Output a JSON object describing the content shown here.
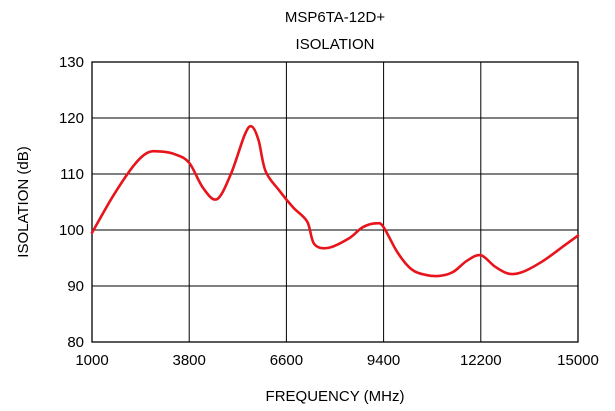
{
  "chart_data": {
    "type": "line",
    "title": "MSP6TA-12D+",
    "subtitle": "ISOLATION",
    "xlabel": "FREQUENCY (MHz)",
    "ylabel": "ISOLATION (dB)",
    "xlim": [
      1000,
      15000
    ],
    "ylim": [
      80,
      130
    ],
    "x_ticks": [
      1000,
      3800,
      6600,
      9400,
      12200,
      15000
    ],
    "y_ticks": [
      80,
      90,
      100,
      110,
      120,
      130
    ],
    "x_tick_labels": [
      "1000",
      "3800",
      "6600",
      "9400",
      "12200",
      "15000"
    ],
    "y_tick_labels": [
      "80",
      "90",
      "100",
      "110",
      "120",
      "130"
    ],
    "grid": true,
    "legend": "none",
    "series_color": "#e8141c",
    "series": [
      {
        "x": [
          1000,
          1600,
          2200,
          2600,
          3000,
          3400,
          3800,
          4200,
          4600,
          5000,
          5400,
          5600,
          5800,
          6000,
          6400,
          6800,
          7200,
          7400,
          7800,
          8400,
          8800,
          9200,
          9400,
          9800,
          10200,
          10600,
          11000,
          11400,
          11800,
          12200,
          12600,
          13000,
          13400,
          14000,
          14600,
          15000
        ],
        "y": [
          99.5,
          106,
          111.5,
          113.8,
          114,
          113.5,
          112,
          107.5,
          105.5,
          110,
          117,
          118.5,
          116,
          110.5,
          107,
          104,
          101.5,
          97.5,
          96.8,
          98.5,
          100.5,
          101.2,
          100.5,
          96,
          93,
          92,
          91.8,
          92.5,
          94.5,
          95.5,
          93.5,
          92.2,
          92.5,
          94.5,
          97.2,
          99
        ]
      }
    ]
  }
}
